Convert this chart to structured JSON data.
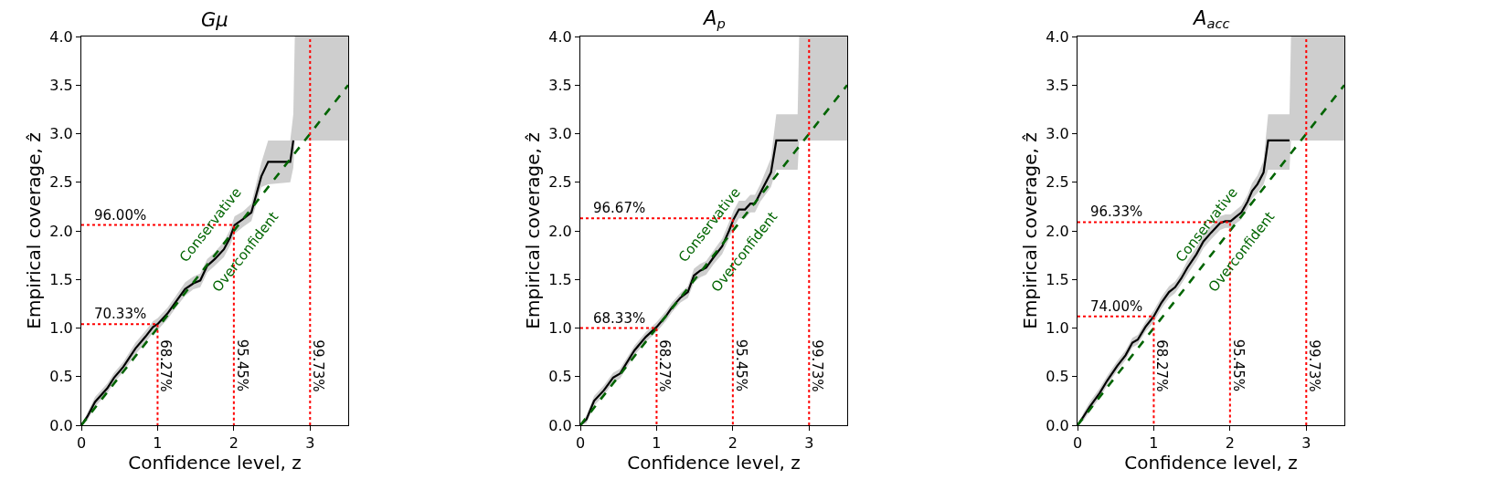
{
  "chart_data": [
    {
      "type": "line",
      "title": "Gμ",
      "xlabel": "Confidence level, z",
      "ylabel": "Empirical coverage, ẑ",
      "xlim": [
        0,
        3.5
      ],
      "xticks": [
        0,
        1,
        2,
        3
      ],
      "ylim": [
        0,
        4
      ],
      "yticks": [
        {
          "value": 0,
          "label": "0.0"
        },
        {
          "value": 0.5,
          "label": "0.5"
        },
        {
          "value": 1,
          "label": "1.0"
        },
        {
          "value": 1.5,
          "label": "1.5"
        },
        {
          "value": 2,
          "label": "2.0"
        },
        {
          "value": 2.5,
          "label": "2.5"
        },
        {
          "value": 3,
          "label": "3.0"
        },
        {
          "value": 3.5,
          "label": "3.5"
        },
        {
          "value": 4,
          "label": "4.0"
        }
      ],
      "series": [
        {
          "color": "#000000",
          "x": [
            0,
            0.08,
            0.18,
            0.34,
            0.43,
            0.55,
            0.71,
            0.84,
            0.94,
            1.0,
            1.13,
            1.23,
            1.36,
            1.47,
            1.56,
            1.65,
            1.75,
            1.87,
            1.95,
            2.01,
            2.12,
            2.23,
            2.36,
            2.45,
            2.74,
            2.78,
            2.8,
            3.5
          ],
          "values": [
            0,
            0.09,
            0.24,
            0.38,
            0.49,
            0.6,
            0.79,
            0.91,
            1.01,
            1.04,
            1.15,
            1.26,
            1.4,
            1.46,
            1.49,
            1.64,
            1.71,
            1.81,
            1.93,
            2.06,
            2.12,
            2.19,
            2.56,
            2.71,
            2.71,
            2.93,
            null,
            null
          ],
          "lower": [
            0,
            0.05,
            0.19,
            0.33,
            0.44,
            0.55,
            0.73,
            0.85,
            0.95,
            0.98,
            1.09,
            1.2,
            1.33,
            1.4,
            1.42,
            1.57,
            1.64,
            1.73,
            1.85,
            1.97,
            2.04,
            2.1,
            2.45,
            2.48,
            2.5,
            2.65,
            2.93,
            2.93
          ],
          "upper": [
            0,
            0.13,
            0.29,
            0.43,
            0.54,
            0.65,
            0.85,
            0.97,
            1.07,
            1.1,
            1.21,
            1.32,
            1.47,
            1.53,
            1.56,
            1.71,
            1.78,
            1.89,
            2.01,
            2.15,
            2.2,
            2.28,
            2.7,
            2.93,
            2.93,
            3.2,
            4.0,
            4.0
          ]
        },
        {
          "type": "line",
          "color": "#006400",
          "line_style": "dashed",
          "x": [
            0,
            3.5
          ],
          "values": [
            0,
            3.5
          ]
        },
        {
          "type": "line",
          "color": "#ff0000",
          "line_style": "dotted",
          "x": [
            0,
            1,
            1
          ],
          "values": [
            1.04,
            1.04,
            0
          ]
        },
        {
          "type": "line",
          "color": "#ff0000",
          "line_style": "dotted",
          "x": [
            0,
            2,
            2
          ],
          "values": [
            2.06,
            2.06,
            0
          ]
        },
        {
          "type": "line",
          "color": "#ff0000",
          "line_style": "dotted",
          "x": [
            3,
            3
          ],
          "values": [
            0,
            4
          ]
        }
      ],
      "annotations": [
        {
          "text": "96.00%",
          "x": 0,
          "y": 2.06
        },
        {
          "text": "70.33%",
          "x": 0,
          "y": 1.04
        },
        {
          "text": "68.27%",
          "x": 1,
          "y": 0.9
        },
        {
          "text": "95.45%",
          "x": 2,
          "y": 0.9
        },
        {
          "text": "99.73%",
          "x": 3,
          "y": 0.9
        },
        "Conservative",
        "Overconfident"
      ]
    },
    {
      "type": "line",
      "title": "A$_{p}$",
      "xlabel": "Confidence level, z",
      "ylabel": "Empirical coverage, ẑ",
      "xlim": [
        0,
        3.5
      ],
      "xticks": [
        0,
        1,
        2,
        3
      ],
      "ylim": [
        0,
        4
      ],
      "yticks": [
        {
          "value": 0,
          "label": "0.0"
        },
        {
          "value": 0.5,
          "label": "0.5"
        },
        {
          "value": 1,
          "label": "1.0"
        },
        {
          "value": 1.5,
          "label": "1.5"
        },
        {
          "value": 2,
          "label": "2.0"
        },
        {
          "value": 2.5,
          "label": "2.5"
        },
        {
          "value": 3,
          "label": "3.0"
        },
        {
          "value": 3.5,
          "label": "3.5"
        },
        {
          "value": 4,
          "label": "4.0"
        }
      ],
      "series": [
        {
          "color": "#000000",
          "x": [
            0,
            0.08,
            0.18,
            0.31,
            0.43,
            0.52,
            0.71,
            0.86,
            1.0,
            1.13,
            1.2,
            1.31,
            1.41,
            1.49,
            1.57,
            1.65,
            1.75,
            1.86,
            1.95,
            2.01,
            2.08,
            2.16,
            2.23,
            2.29,
            2.36,
            2.5,
            2.57,
            2.85,
            2.87,
            3.5
          ],
          "values": [
            0,
            0.06,
            0.25,
            0.36,
            0.49,
            0.53,
            0.77,
            0.91,
            1.01,
            1.13,
            1.21,
            1.31,
            1.37,
            1.54,
            1.59,
            1.62,
            1.73,
            1.84,
            2.0,
            2.12,
            2.22,
            2.22,
            2.28,
            2.28,
            2.39,
            2.6,
            2.93,
            2.93,
            null,
            null
          ],
          "lower": [
            0,
            0.02,
            0.2,
            0.31,
            0.44,
            0.48,
            0.72,
            0.86,
            0.96,
            1.08,
            1.16,
            1.26,
            1.31,
            1.47,
            1.52,
            1.55,
            1.66,
            1.76,
            1.92,
            2.03,
            2.13,
            2.13,
            2.19,
            2.19,
            2.3,
            2.45,
            2.63,
            2.63,
            2.93,
            2.93
          ],
          "upper": [
            0,
            0.1,
            0.3,
            0.41,
            0.54,
            0.58,
            0.82,
            0.96,
            1.06,
            1.18,
            1.26,
            1.36,
            1.43,
            1.61,
            1.66,
            1.69,
            1.8,
            1.92,
            2.09,
            2.21,
            2.31,
            2.31,
            2.37,
            2.37,
            2.48,
            2.75,
            3.2,
            3.2,
            4.0,
            4.0
          ]
        },
        {
          "type": "line",
          "color": "#006400",
          "line_style": "dashed",
          "x": [
            0,
            3.5
          ],
          "values": [
            0,
            3.5
          ]
        },
        {
          "type": "line",
          "color": "#ff0000",
          "line_style": "dotted",
          "x": [
            0,
            1,
            1
          ],
          "values": [
            1.0,
            1.0,
            0
          ]
        },
        {
          "type": "line",
          "color": "#ff0000",
          "line_style": "dotted",
          "x": [
            0,
            2,
            2
          ],
          "values": [
            2.13,
            2.13,
            0
          ]
        },
        {
          "type": "line",
          "color": "#ff0000",
          "line_style": "dotted",
          "x": [
            3,
            3
          ],
          "values": [
            0,
            4
          ]
        }
      ],
      "annotations": [
        {
          "text": "96.67%",
          "x": 0,
          "y": 2.13
        },
        {
          "text": "68.33%",
          "x": 0,
          "y": 1.0
        },
        {
          "text": "68.27%",
          "x": 1,
          "y": 0.9
        },
        {
          "text": "95.45%",
          "x": 2,
          "y": 0.9
        },
        {
          "text": "99.73%",
          "x": 3,
          "y": 0.9
        },
        "Conservative",
        "Overconfident"
      ]
    },
    {
      "type": "line",
      "title": "A$_{acc}$",
      "xlabel": "Confidence level, z",
      "ylabel": "Empirical coverage, ẑ",
      "xlim": [
        0,
        3.5
      ],
      "xticks": [
        0,
        1,
        2,
        3
      ],
      "ylim": [
        0,
        4
      ],
      "yticks": [
        {
          "value": 0,
          "label": "0.0"
        },
        {
          "value": 0.5,
          "label": "0.5"
        },
        {
          "value": 1,
          "label": "1.0"
        },
        {
          "value": 1.5,
          "label": "1.5"
        },
        {
          "value": 2,
          "label": "2.0"
        },
        {
          "value": 2.5,
          "label": "2.5"
        },
        {
          "value": 3,
          "label": "3.0"
        },
        {
          "value": 3.5,
          "label": "3.5"
        },
        {
          "value": 4,
          "label": "4.0"
        }
      ],
      "series": [
        {
          "color": "#000000",
          "x": [
            0,
            0.08,
            0.16,
            0.29,
            0.39,
            0.52,
            0.63,
            0.72,
            0.79,
            0.89,
            1.0,
            1.1,
            1.2,
            1.28,
            1.36,
            1.44,
            1.56,
            1.65,
            1.75,
            1.87,
            1.94,
            2.01,
            2.07,
            2.15,
            2.23,
            2.29,
            2.36,
            2.44,
            2.5,
            2.78,
            2.8,
            3.5
          ],
          "values": [
            0,
            0.09,
            0.19,
            0.33,
            0.46,
            0.61,
            0.72,
            0.85,
            0.88,
            1.01,
            1.12,
            1.26,
            1.37,
            1.42,
            1.51,
            1.62,
            1.76,
            1.89,
            1.98,
            2.08,
            2.1,
            2.1,
            2.14,
            2.19,
            2.3,
            2.41,
            2.48,
            2.6,
            2.93,
            2.93,
            null,
            null
          ],
          "lower": [
            0,
            0.05,
            0.14,
            0.28,
            0.41,
            0.56,
            0.67,
            0.8,
            0.83,
            0.96,
            1.06,
            1.2,
            1.31,
            1.36,
            1.45,
            1.55,
            1.69,
            1.82,
            1.91,
            2.01,
            2.03,
            2.03,
            2.07,
            2.12,
            2.23,
            2.33,
            2.39,
            2.48,
            2.63,
            2.63,
            2.93,
            2.93
          ],
          "upper": [
            0,
            0.13,
            0.24,
            0.38,
            0.51,
            0.66,
            0.77,
            0.9,
            0.93,
            1.06,
            1.18,
            1.32,
            1.43,
            1.48,
            1.57,
            1.69,
            1.83,
            1.96,
            2.05,
            2.15,
            2.17,
            2.17,
            2.21,
            2.26,
            2.37,
            2.49,
            2.57,
            2.72,
            3.2,
            3.2,
            4.0,
            4.0
          ]
        },
        {
          "type": "line",
          "color": "#006400",
          "line_style": "dashed",
          "x": [
            0,
            3.5
          ],
          "values": [
            0,
            3.5
          ]
        },
        {
          "type": "line",
          "color": "#ff0000",
          "line_style": "dotted",
          "x": [
            0,
            1,
            1
          ],
          "values": [
            1.12,
            1.12,
            0
          ]
        },
        {
          "type": "line",
          "color": "#ff0000",
          "line_style": "dotted",
          "x": [
            0,
            2,
            2
          ],
          "values": [
            2.09,
            2.09,
            0
          ]
        },
        {
          "type": "line",
          "color": "#ff0000",
          "line_style": "dotted",
          "x": [
            3,
            3
          ],
          "values": [
            0,
            4
          ]
        }
      ],
      "annotations": [
        {
          "text": "96.33%",
          "x": 0,
          "y": 2.09
        },
        {
          "text": "74.00%",
          "x": 0,
          "y": 1.12
        },
        {
          "text": "68.27%",
          "x": 1,
          "y": 0.9
        },
        {
          "text": "95.45%",
          "x": 2,
          "y": 0.9
        },
        {
          "text": "99.73%",
          "x": 3,
          "y": 0.9
        },
        "Conservative",
        "Overconfident"
      ]
    }
  ]
}
